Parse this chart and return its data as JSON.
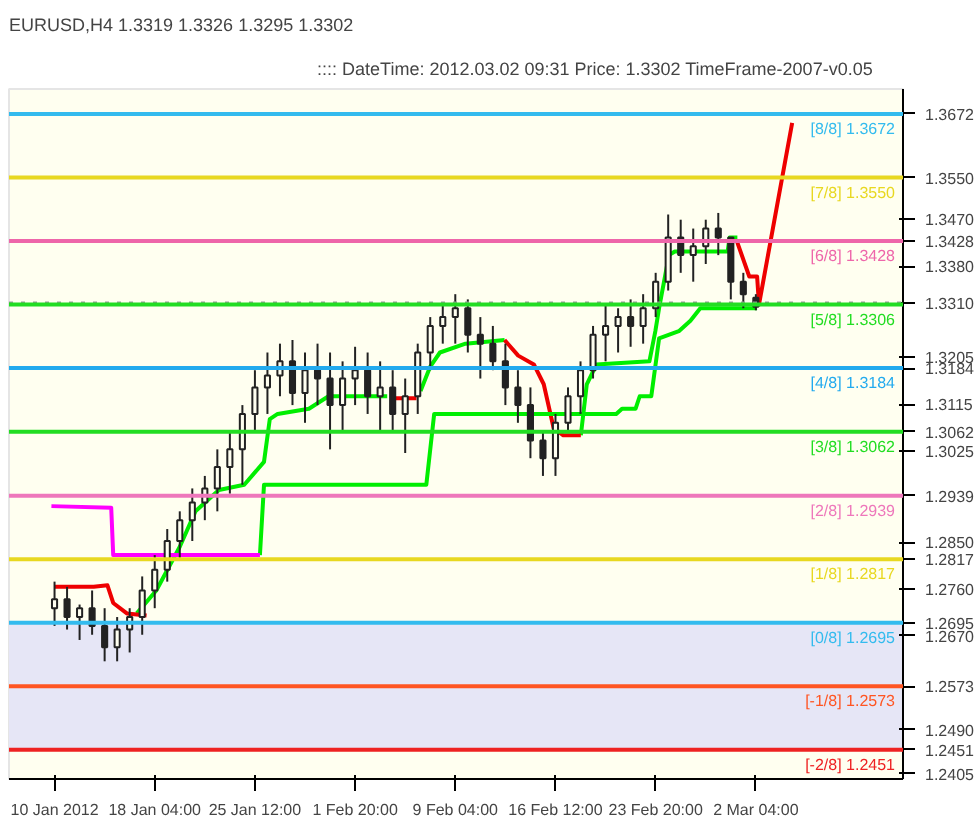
{
  "chart_data": {
    "type": "candlestick",
    "title": "EURUSD,H4  1.3319 1.3326 1.3295 1.3302",
    "annotations": [
      ":::: DateTime: 2012.03.02 09:31    Price: 1.3302    TimeFrame-2007-v0.05"
    ],
    "color": "#222222",
    "x": [
      "2012-01-10T20:00",
      "2012-01-11T18:00",
      "2012-01-12T16:00",
      "2012-01-13T14:00",
      "2012-01-14T12:00",
      "2012-01-15T10:00",
      "2012-01-16T08:00",
      "2012-01-17T06:00",
      "2012-01-18T04:00",
      "2012-01-19T02:00",
      "2012-01-20T00:00",
      "2012-01-20T22:00",
      "2012-01-21T20:00",
      "2012-01-22T18:00",
      "2012-01-23T16:00",
      "2012-01-24T14:00",
      "2012-01-25T12:00",
      "2012-01-26T10:00",
      "2012-01-27T08:00",
      "2012-01-28T06:00",
      "2012-01-29T04:00",
      "2012-01-30T02:00",
      "2012-01-31T00:00",
      "2012-01-31T22:00",
      "2012-02-01T20:00",
      "2012-02-02T18:00",
      "2012-02-03T16:00",
      "2012-02-04T14:00",
      "2012-02-05T12:00",
      "2012-02-06T10:00",
      "2012-02-07T08:00",
      "2012-02-08T06:00",
      "2012-02-09T04:00",
      "2012-02-10T02:00",
      "2012-02-11T00:00",
      "2012-02-11T22:00",
      "2012-02-12T20:00",
      "2012-02-13T18:00",
      "2012-02-14T16:00",
      "2012-02-15T14:00",
      "2012-02-16T12:00",
      "2012-02-17T10:00",
      "2012-02-18T08:00",
      "2012-02-19T06:00",
      "2012-02-20T04:00",
      "2012-02-21T02:00",
      "2012-02-22T00:00",
      "2012-02-22T22:00",
      "2012-02-23T20:00",
      "2012-02-24T18:00",
      "2012-02-25T16:00",
      "2012-02-26T14:00",
      "2012-02-27T12:00",
      "2012-02-28T10:00",
      "2012-02-29T08:00",
      "2012-03-01T06:00",
      "2012-03-02T04:00"
    ],
    "ohlc": [
      [
        1.2723,
        1.2774,
        1.2689,
        1.274
      ],
      [
        1.274,
        1.2764,
        1.2682,
        1.2706
      ],
      [
        1.2706,
        1.273,
        1.2662,
        1.2723
      ],
      [
        1.2723,
        1.2757,
        1.2672,
        1.2689
      ],
      [
        1.2689,
        1.2723,
        1.2621,
        1.2648
      ],
      [
        1.2648,
        1.2706,
        1.2621,
        1.2682
      ],
      [
        1.2682,
        1.2723,
        1.2638,
        1.2706
      ],
      [
        1.2706,
        1.2784,
        1.2672,
        1.2757
      ],
      [
        1.2757,
        1.2825,
        1.2723,
        1.2797
      ],
      [
        1.2797,
        1.2875,
        1.2774,
        1.2852
      ],
      [
        1.2852,
        1.2909,
        1.2818,
        1.2892
      ],
      [
        1.2892,
        1.2953,
        1.2852,
        1.2926
      ],
      [
        1.2926,
        1.2977,
        1.2892,
        1.2953
      ],
      [
        1.2953,
        1.3028,
        1.2909,
        1.2994
      ],
      [
        1.2994,
        1.3062,
        1.2943,
        1.3028
      ],
      [
        1.3028,
        1.3113,
        1.296,
        1.3096
      ],
      [
        1.3096,
        1.318,
        1.3062,
        1.3147
      ],
      [
        1.3147,
        1.3214,
        1.3096,
        1.317
      ],
      [
        1.317,
        1.3231,
        1.313,
        1.3197
      ],
      [
        1.3197,
        1.3238,
        1.3113,
        1.3136
      ],
      [
        1.3136,
        1.3214,
        1.3079,
        1.318
      ],
      [
        1.318,
        1.3231,
        1.3113,
        1.3164
      ],
      [
        1.3164,
        1.3214,
        1.3028,
        1.3113
      ],
      [
        1.3113,
        1.3197,
        1.3062,
        1.3164
      ],
      [
        1.3164,
        1.3225,
        1.3113,
        1.318
      ],
      [
        1.318,
        1.3214,
        1.3096,
        1.313
      ],
      [
        1.313,
        1.3197,
        1.3062,
        1.3147
      ],
      [
        1.3147,
        1.318,
        1.3062,
        1.3096
      ],
      [
        1.3096,
        1.3164,
        1.3021,
        1.313
      ],
      [
        1.313,
        1.3231,
        1.3096,
        1.3214
      ],
      [
        1.3214,
        1.3282,
        1.318,
        1.3265
      ],
      [
        1.3265,
        1.3306,
        1.3231,
        1.3282
      ],
      [
        1.3282,
        1.3326,
        1.3231,
        1.3299
      ],
      [
        1.3299,
        1.3316,
        1.3214,
        1.3248
      ],
      [
        1.3248,
        1.3282,
        1.3164,
        1.3231
      ],
      [
        1.3231,
        1.3265,
        1.318,
        1.3197
      ],
      [
        1.3197,
        1.3231,
        1.3113,
        1.3147
      ],
      [
        1.3147,
        1.318,
        1.3079,
        1.3113
      ],
      [
        1.3113,
        1.3147,
        1.3011,
        1.3045
      ],
      [
        1.3045,
        1.3062,
        1.2977,
        1.3011
      ],
      [
        1.3011,
        1.3096,
        1.2977,
        1.3079
      ],
      [
        1.3079,
        1.3147,
        1.3062,
        1.313
      ],
      [
        1.313,
        1.3197,
        1.3096,
        1.318
      ],
      [
        1.318,
        1.3265,
        1.3164,
        1.3248
      ],
      [
        1.3248,
        1.3306,
        1.3197,
        1.3265
      ],
      [
        1.3265,
        1.3299,
        1.3214,
        1.3282
      ],
      [
        1.3282,
        1.3316,
        1.3225,
        1.3265
      ],
      [
        1.3265,
        1.3326,
        1.3231,
        1.3299
      ],
      [
        1.3299,
        1.3367,
        1.3282,
        1.335
      ],
      [
        1.335,
        1.3479,
        1.3333,
        1.3435
      ],
      [
        1.3435,
        1.3469,
        1.3367,
        1.3401
      ],
      [
        1.3401,
        1.3452,
        1.335,
        1.3418
      ],
      [
        1.3418,
        1.3469,
        1.3384,
        1.3452
      ],
      [
        1.3452,
        1.3482,
        1.3401,
        1.3435
      ],
      [
        1.3435,
        1.3435,
        1.3316,
        1.335
      ],
      [
        1.335,
        1.3367,
        1.3299,
        1.3326
      ],
      [
        1.3319,
        1.3326,
        1.3295,
        1.3302
      ]
    ],
    "series": [
      {
        "type": "line",
        "color": "#00ee00",
        "x": [
          "2012-01-16T20:24",
          "2012-01-18T06:45",
          "2012-01-20T00:00",
          "2012-01-21T03:30",
          "2012-01-22T20:45",
          "2012-01-24T17:18",
          "2012-01-26T03:57",
          "2012-01-26T14:06",
          "2012-01-27T03:54",
          "2012-01-29T10:54",
          "2012-01-30T21:15",
          "2012-02-04T04:24",
          "2012-02-04T14:00",
          "2012-02-06T15:00",
          "2012-02-07T08:00",
          "2012-02-08T01:00",
          "2012-02-09T21:54",
          "2012-02-12T18:36",
          "2012-02-13T01:30",
          "2012-02-18T08:33",
          "2012-02-18T19:00",
          "2012-02-19T12:00",
          "2012-02-23T09:00",
          "2012-02-23T19:27",
          "2012-02-24T02:00",
          "2012-02-24T19:24",
          "2012-02-25T05:33",
          "2012-02-29T02:30",
          "2012-02-29T05:48",
          "2012-02-29T19:33"
        ],
        "values": [
          1.2713,
          1.2757,
          1.2841,
          1.2909,
          1.295,
          1.296,
          1.3004,
          1.3086,
          1.3096,
          1.3106,
          1.313,
          1.313,
          null,
          1.314,
          1.3187,
          1.3214,
          1.3231,
          1.3238,
          null,
          1.3055,
          1.3153,
          1.3191,
          1.3197,
          1.3255,
          1.3299,
          1.3401,
          1.3408,
          1.3408,
          1.3435,
          1.3435
        ]
      },
      {
        "type": "line",
        "color": "#ee0000",
        "x": [
          "2012-01-10T20:00",
          "2012-01-13T16:45",
          "2012-01-14T16:57",
          "2012-01-15T03:06",
          "2012-01-16T03:03",
          "2012-01-17T13:42",
          "2012-01-17T17:00",
          "2012-02-04T14:33",
          "2012-02-06T07:48",
          "2012-02-06T10:00",
          "2012-02-12T18:36",
          "2012-02-13T18:33",
          "2012-02-14T22:03",
          "2012-02-15T15:24",
          "2012-02-16T08:42",
          "2012-02-17T01:45",
          "2012-02-18T08:33",
          "2012-02-18T13:30",
          "2012-02-29T19:33",
          "2012-03-01T16:27",
          "2012-03-02T06:12",
          "2012-03-02T09:30",
          "2012-03-04T19:48"
        ],
        "values": [
          1.2764,
          1.2764,
          1.2767,
          1.2733,
          1.2713,
          1.2709,
          null,
          1.3126,
          1.3126,
          null,
          1.3238,
          1.3208,
          1.3191,
          1.3153,
          1.3069,
          1.3055,
          1.3055,
          null,
          1.3425,
          1.336,
          1.336,
          1.3306,
          1.3655
        ]
      },
      {
        "type": "line",
        "color": "#00ee00",
        "x": [
          "2012-01-25T20:48",
          "2012-01-26T03:57",
          "2012-02-07T01:06",
          "2012-02-07T14:54",
          "2012-02-20T22:42",
          "2012-02-21T08:54",
          "2012-02-22T08:48",
          "2012-02-22T15:57",
          "2012-02-23T12:18",
          "2012-02-24T02:00",
          "2012-02-25T12:42",
          "2012-02-26T09:03",
          "2012-02-27T02:24",
          "2012-03-02T06:12"
        ],
        "values": [
          1.2825,
          1.296,
          1.296,
          1.3096,
          1.3096,
          1.3106,
          1.3106,
          1.313,
          1.313,
          1.3241,
          1.3255,
          1.3275,
          1.3299,
          1.3299
        ]
      },
      {
        "type": "line",
        "color": "#ff00ff",
        "x": [
          "2012-01-10T14:30",
          "2012-01-14T23:33",
          "2012-01-15T03:06",
          "2012-01-25T20:48"
        ],
        "values": [
          1.2919,
          1.2916,
          1.2825,
          1.2825
        ]
      }
    ],
    "ref_lines": [
      {
        "axis": "y",
        "value": 1.3672,
        "label": "[8/8]  1.3672",
        "color": "#33bbee"
      },
      {
        "axis": "y",
        "value": 1.355,
        "label": "[7/8]  1.3550",
        "color": "#e8d820"
      },
      {
        "axis": "y",
        "value": 1.3428,
        "label": "[6/8]  1.3428",
        "color": "#ee66aa"
      },
      {
        "axis": "y",
        "value": 1.331,
        "color": "#999999",
        "line_style": "dotted"
      },
      {
        "axis": "y",
        "value": 1.3306,
        "label": "[5/8]  1.3306",
        "color": "#22dd22"
      },
      {
        "axis": "y",
        "value": 1.3184,
        "label": "[4/8]  1.3184",
        "color": "#22aaee"
      },
      {
        "axis": "y",
        "value": 1.3062,
        "label": "[3/8]  1.3062",
        "color": "#22dd22"
      },
      {
        "axis": "y",
        "value": 1.2939,
        "label": "[2/8]  1.2939",
        "color": "#ee77bb"
      },
      {
        "axis": "y",
        "value": 1.2817,
        "label": "[1/8]  1.2817",
        "color": "#e8d820"
      },
      {
        "axis": "y",
        "value": 1.2695,
        "label": "[0/8]  1.2695",
        "color": "#33bbee"
      },
      {
        "axis": "y",
        "value": 1.2573,
        "label": "[-1/8]  1.2573",
        "color": "#ff5522"
      },
      {
        "axis": "y",
        "value": 1.2451,
        "label": "[-2/8]  1.2451",
        "color": "#ee2222"
      }
    ],
    "bands": [
      {
        "axis": "y",
        "from": 1.2451,
        "to": 1.2695,
        "color": "#e6e6f6"
      }
    ],
    "xlim": [
      "2012-01-07T12:00",
      "2012-03-12T22:30"
    ],
    "xticks": [
      {
        "value": "2012-01-10T20:00",
        "label": "10 Jan 2012"
      },
      {
        "value": "2012-01-18T04:00",
        "label": "18 Jan 04:00"
      },
      {
        "value": "2012-01-25T12:00",
        "label": "25 Jan 12:00"
      },
      {
        "value": "2012-02-01T20:00",
        "label": "1 Feb 20:00"
      },
      {
        "value": "2012-02-09T04:00",
        "label": "9 Feb 04:00"
      },
      {
        "value": "2012-02-16T12:00",
        "label": "16 Feb 12:00"
      },
      {
        "value": "2012-02-23T20:00",
        "label": "23 Feb 20:00"
      },
      {
        "value": "2012-03-02T04:00",
        "label": "2 Mar 04:00"
      }
    ],
    "ylim": [
      1.2395,
      1.372
    ],
    "yticks": [
      1.3672,
      {
        "value": 1.355,
        "label": "1.3550"
      },
      {
        "value": 1.347,
        "label": "1.3470"
      },
      1.3428,
      {
        "value": 1.338,
        "label": "1.3380"
      },
      {
        "value": 1.331,
        "label": "1.3310"
      },
      1.3205,
      1.3184,
      1.3115,
      1.3062,
      1.3025,
      1.2939,
      {
        "value": 1.285,
        "label": "1.2850"
      },
      1.2817,
      {
        "value": 1.276,
        "label": "1.2760"
      },
      1.2695,
      {
        "value": 1.267,
        "label": "1.2670"
      },
      1.2573,
      {
        "value": 1.249,
        "label": "1.2490"
      },
      1.2451,
      1.2405
    ],
    "grid": false
  }
}
